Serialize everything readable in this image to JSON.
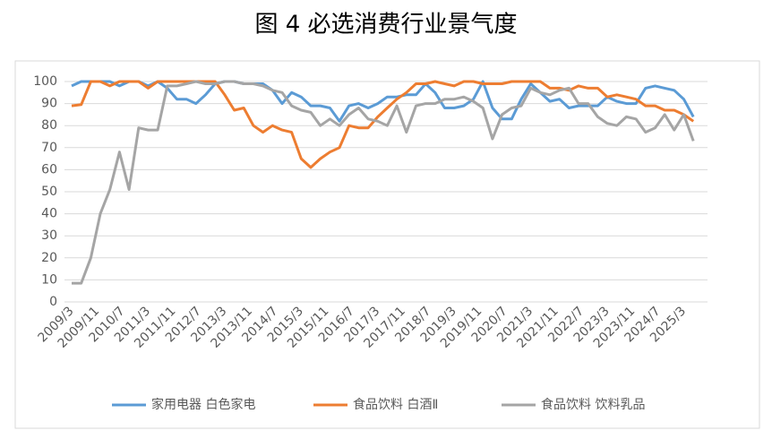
{
  "chart_data": {
    "type": "line",
    "title": "图 4  必选消费行业景气度",
    "x": [
      "2009/3",
      "2009/6",
      "2009/9",
      "2009/12",
      "2010/3",
      "2010/6",
      "2010/9",
      "2010/12",
      "2011/3",
      "2011/6",
      "2011/9",
      "2011/12",
      "2012/3",
      "2012/6",
      "2012/9",
      "2012/12",
      "2013/3",
      "2013/6",
      "2013/9",
      "2013/12",
      "2014/3",
      "2014/6",
      "2014/9",
      "2014/12",
      "2015/3",
      "2015/6",
      "2015/9",
      "2015/12",
      "2016/3",
      "2016/6",
      "2016/9",
      "2016/12",
      "2017/3",
      "2017/6",
      "2017/9",
      "2017/12",
      "2018/3",
      "2018/6",
      "2018/9",
      "2018/12",
      "2019/3",
      "2019/6",
      "2019/9",
      "2019/12",
      "2020/3",
      "2020/6",
      "2020/9",
      "2020/12",
      "2021/3",
      "2021/6",
      "2021/9",
      "2021/12",
      "2022/3",
      "2022/6",
      "2022/9",
      "2022/12",
      "2023/3",
      "2023/6",
      "2023/9",
      "2023/12",
      "2024/3",
      "2024/6",
      "2024/9",
      "2024/12",
      "2025/3",
      "2025/6"
    ],
    "series": [
      {
        "name": "家用电器 白色家电",
        "color": "#5b9bd5",
        "values": [
          98,
          100,
          100,
          100,
          100,
          98,
          100,
          100,
          98,
          100,
          97,
          92,
          92,
          90,
          94,
          99,
          100,
          100,
          99,
          99,
          99,
          96,
          90,
          95,
          93,
          89,
          89,
          88,
          82,
          89,
          90,
          88,
          90,
          93,
          93,
          94,
          94,
          99,
          95,
          88,
          88,
          89,
          92,
          100,
          88,
          83,
          83,
          92,
          99,
          95,
          91,
          92,
          88,
          89,
          89,
          89,
          93,
          91,
          90,
          90,
          97,
          98,
          97,
          96,
          92,
          84
        ]
      },
      {
        "name": "食品饮料 白酒Ⅱ",
        "color": "#ed7d31",
        "values": [
          89,
          89.5,
          100,
          100,
          98,
          100,
          100,
          100,
          97,
          100,
          100,
          100,
          100,
          100,
          100,
          100,
          94,
          87,
          88,
          80,
          77,
          80,
          78,
          77,
          65,
          61,
          65,
          68,
          70,
          80,
          79,
          79,
          84,
          88,
          92,
          95,
          99,
          99,
          100,
          99,
          98,
          100,
          100,
          99,
          99,
          99,
          100,
          100,
          100,
          100,
          97,
          97,
          96,
          98,
          97,
          97,
          93,
          94,
          93,
          92,
          89,
          89,
          87,
          87,
          85,
          82
        ]
      },
      {
        "name": "食品饮料 饮料乳品",
        "color": "#a5a5a5",
        "values": [
          8.5,
          8.5,
          20,
          40,
          51,
          68,
          51,
          79,
          78,
          78,
          98,
          98,
          99,
          100,
          99,
          99,
          100,
          100,
          99,
          99,
          98,
          96,
          95,
          89,
          87,
          86,
          80,
          83,
          80,
          85,
          88,
          83,
          82,
          80,
          89,
          77,
          89,
          90,
          90,
          92,
          92,
          93,
          91,
          88,
          74,
          85,
          88,
          89,
          97,
          95,
          94,
          96,
          97,
          90,
          90,
          84,
          81,
          80,
          84,
          83,
          77,
          79,
          85,
          78,
          85,
          73
        ]
      }
    ],
    "xticks": [
      "2009/3",
      "2009/11",
      "2010/7",
      "2011/3",
      "2011/11",
      "2012/7",
      "2013/3",
      "2013/11",
      "2014/7",
      "2015/3",
      "2015/11",
      "2016/7",
      "2017/3",
      "2017/11",
      "2018/7",
      "2019/3",
      "2019/11",
      "2020/7",
      "2021/3",
      "2021/11",
      "2022/7",
      "2023/3",
      "2023/11",
      "2024/7",
      "2025/3"
    ],
    "ylim": [
      0,
      100
    ],
    "yticks": [
      0,
      10,
      20,
      30,
      40,
      50,
      60,
      70,
      80,
      90,
      100
    ],
    "grid": true
  }
}
